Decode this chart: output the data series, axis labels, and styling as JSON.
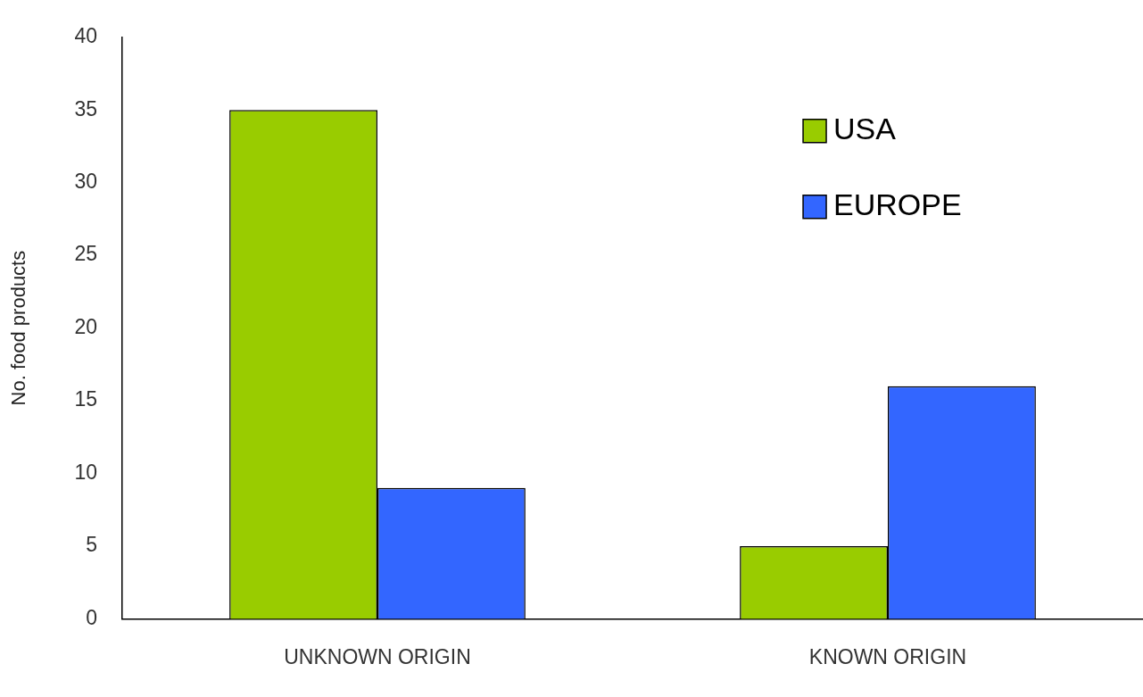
{
  "chart_data": {
    "type": "bar",
    "ylabel": "No. food products",
    "categories": [
      "UNKNOWN ORIGIN",
      "KNOWN ORIGIN"
    ],
    "series": [
      {
        "name": "USA",
        "color": "#99cc00",
        "values": [
          35,
          5
        ]
      },
      {
        "name": "EUROPE",
        "color": "#3366ff",
        "values": [
          9,
          16
        ]
      }
    ],
    "ylim": [
      0,
      40
    ],
    "yticks": [
      0,
      5,
      10,
      15,
      20,
      25,
      30,
      35,
      40
    ],
    "grid": false,
    "legend": "top right"
  }
}
